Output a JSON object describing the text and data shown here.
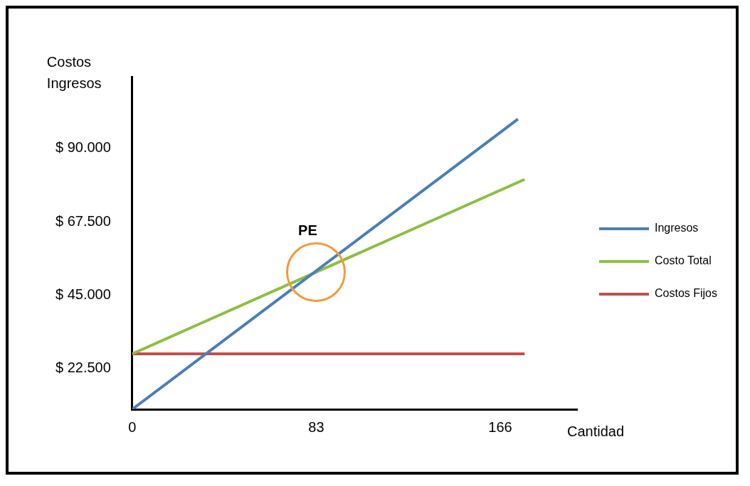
{
  "chart_data": {
    "type": "line",
    "ylabel": "Costos\nIngresos",
    "xlabel": "Cantidad",
    "xlim": [
      0,
      201
    ],
    "xticks": [
      0,
      83,
      166
    ],
    "ylim": [
      10000,
      112000
    ],
    "yticks": [
      {
        "value": 22500,
        "label": "$ 22.500"
      },
      {
        "value": 45000,
        "label": "$ 45.000"
      },
      {
        "value": 67500,
        "label": "$ 67.500"
      },
      {
        "value": 90000,
        "label": "$ 90.000"
      }
    ],
    "series": [
      {
        "name": "Ingresos",
        "color": "#4a7ebb",
        "x": [
          0,
          174
        ],
        "values": [
          10000,
          99000
        ]
      },
      {
        "name": "Costo Total",
        "color": "#8cbf3f",
        "x": [
          0,
          177
        ],
        "values": [
          27000,
          80500
        ]
      },
      {
        "name": "Costos Fijos",
        "color": "#c0504d",
        "x": [
          0,
          177
        ],
        "values": [
          27000,
          27000
        ]
      }
    ],
    "annotations": [
      {
        "text": "PE",
        "x": 83,
        "y": 52000
      }
    ],
    "grid": false,
    "legend": "right",
    "marker": "none",
    "line_style": "solid"
  }
}
